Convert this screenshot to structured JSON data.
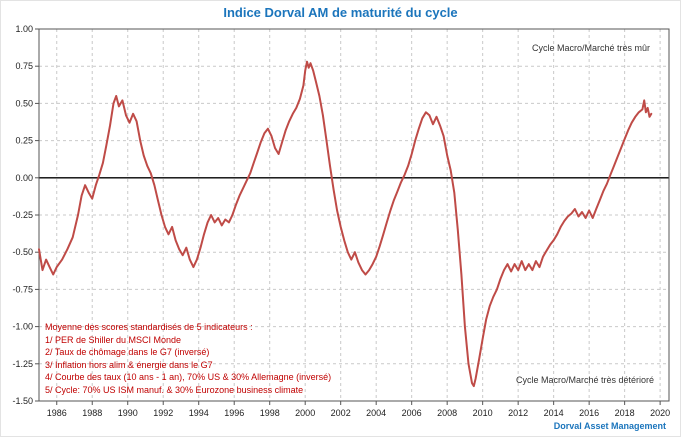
{
  "title": "Indice Dorval AM de maturité du cycle",
  "footer": "Dorval Asset Management",
  "annotations": {
    "top_right": "Cycle Macro/Marché très mûr",
    "bottom_right": "Cycle Macro/Marché très détérioré"
  },
  "methodology": {
    "lines": [
      "Moyenne des scores standardisés de 5 indicateurs :",
      "1/ PER de Shiller du MSCI Monde",
      "2/ Taux de chômage dans le G7 (inversé)",
      "3/ Inflation hors alim & énergie dans le G7",
      "4/ Courbe des taux (10 ans - 1 an), 70% US & 30% Allemagne (inversé)",
      "5/ Cycle: 70% US ISM manuf. & 30% Eurozone business climate"
    ]
  },
  "colors": {
    "title": "#1b75bc",
    "line": "#bf4b47",
    "methodology": "#c00000",
    "footer": "#1b75bc",
    "grid": "#c9c9c9",
    "axis": "#555555",
    "zero_line": "#000000"
  },
  "chart_data": {
    "type": "line",
    "title": "Indice Dorval AM de maturité du cycle",
    "xlabel": "",
    "ylabel": "",
    "xlim": [
      1985,
      2020.5
    ],
    "ylim": [
      -1.5,
      1.0
    ],
    "x_ticks": [
      1986,
      1988,
      1990,
      1992,
      1994,
      1996,
      1998,
      2000,
      2002,
      2004,
      2006,
      2008,
      2010,
      2012,
      2014,
      2016,
      2018,
      2020
    ],
    "y_ticks": [
      1.0,
      0.75,
      0.5,
      0.25,
      0.0,
      -0.25,
      -0.5,
      -0.75,
      -1.0,
      -1.25,
      -1.5
    ],
    "grid": "dashed",
    "legend_position": "none",
    "series": [
      {
        "name": "Indice Dorval AM de maturité du cycle",
        "x": [
          1985.0,
          1985.2,
          1985.4,
          1985.6,
          1985.8,
          1986.0,
          1986.3,
          1986.6,
          1986.9,
          1987.2,
          1987.4,
          1987.6,
          1987.8,
          1988.0,
          1988.2,
          1988.4,
          1988.6,
          1988.8,
          1989.0,
          1989.2,
          1989.35,
          1989.5,
          1989.7,
          1989.9,
          1990.1,
          1990.3,
          1990.5,
          1990.7,
          1990.9,
          1991.1,
          1991.3,
          1991.5,
          1991.7,
          1991.9,
          1992.1,
          1992.3,
          1992.5,
          1992.7,
          1992.9,
          1993.1,
          1993.3,
          1993.5,
          1993.7,
          1993.9,
          1994.1,
          1994.3,
          1994.5,
          1994.7,
          1994.9,
          1995.1,
          1995.3,
          1995.5,
          1995.7,
          1995.9,
          1996.1,
          1996.3,
          1996.5,
          1996.7,
          1996.9,
          1997.1,
          1997.3,
          1997.5,
          1997.7,
          1997.9,
          1998.1,
          1998.3,
          1998.5,
          1998.7,
          1998.9,
          1999.1,
          1999.3,
          1999.5,
          1999.7,
          1999.9,
          2000.0,
          2000.1,
          2000.2,
          2000.3,
          2000.45,
          2000.6,
          2000.8,
          2001.0,
          2001.2,
          2001.4,
          2001.6,
          2001.8,
          2002.0,
          2002.2,
          2002.4,
          2002.6,
          2002.8,
          2003.0,
          2003.2,
          2003.4,
          2003.6,
          2003.8,
          2004.0,
          2004.2,
          2004.4,
          2004.6,
          2004.8,
          2005.0,
          2005.2,
          2005.4,
          2005.6,
          2005.8,
          2006.0,
          2006.2,
          2006.4,
          2006.6,
          2006.8,
          2007.0,
          2007.2,
          2007.4,
          2007.6,
          2007.8,
          2008.0,
          2008.2,
          2008.4,
          2008.6,
          2008.8,
          2009.0,
          2009.2,
          2009.4,
          2009.5,
          2009.6,
          2009.8,
          2010.0,
          2010.2,
          2010.4,
          2010.6,
          2010.8,
          2011.0,
          2011.2,
          2011.4,
          2011.6,
          2011.8,
          2012.0,
          2012.2,
          2012.4,
          2012.6,
          2012.8,
          2013.0,
          2013.2,
          2013.4,
          2013.6,
          2013.8,
          2014.0,
          2014.2,
          2014.4,
          2014.6,
          2014.8,
          2015.0,
          2015.2,
          2015.4,
          2015.6,
          2015.8,
          2016.0,
          2016.2,
          2016.4,
          2016.6,
          2016.8,
          2017.0,
          2017.2,
          2017.4,
          2017.6,
          2017.8,
          2018.0,
          2018.2,
          2018.4,
          2018.6,
          2018.8,
          2019.0,
          2019.1,
          2019.2,
          2019.3,
          2019.4,
          2019.5
        ],
        "y": [
          -0.48,
          -0.62,
          -0.55,
          -0.6,
          -0.65,
          -0.6,
          -0.55,
          -0.48,
          -0.4,
          -0.25,
          -0.12,
          -0.05,
          -0.1,
          -0.14,
          -0.05,
          0.02,
          0.1,
          0.22,
          0.35,
          0.5,
          0.55,
          0.48,
          0.52,
          0.42,
          0.37,
          0.43,
          0.38,
          0.25,
          0.15,
          0.08,
          0.03,
          -0.05,
          -0.15,
          -0.25,
          -0.33,
          -0.38,
          -0.33,
          -0.42,
          -0.48,
          -0.52,
          -0.47,
          -0.55,
          -0.6,
          -0.55,
          -0.47,
          -0.38,
          -0.3,
          -0.25,
          -0.3,
          -0.27,
          -0.32,
          -0.28,
          -0.3,
          -0.25,
          -0.18,
          -0.12,
          -0.07,
          -0.02,
          0.03,
          0.1,
          0.17,
          0.24,
          0.3,
          0.33,
          0.28,
          0.2,
          0.16,
          0.24,
          0.32,
          0.38,
          0.43,
          0.47,
          0.53,
          0.62,
          0.72,
          0.78,
          0.74,
          0.77,
          0.72,
          0.65,
          0.55,
          0.42,
          0.25,
          0.08,
          -0.08,
          -0.22,
          -0.33,
          -0.42,
          -0.5,
          -0.55,
          -0.5,
          -0.57,
          -0.62,
          -0.65,
          -0.62,
          -0.58,
          -0.53,
          -0.46,
          -0.38,
          -0.3,
          -0.22,
          -0.15,
          -0.09,
          -0.03,
          0.02,
          0.08,
          0.16,
          0.25,
          0.33,
          0.4,
          0.44,
          0.42,
          0.36,
          0.41,
          0.35,
          0.28,
          0.15,
          0.05,
          -0.1,
          -0.35,
          -0.65,
          -1.0,
          -1.25,
          -1.38,
          -1.4,
          -1.35,
          -1.22,
          -1.08,
          -0.95,
          -0.86,
          -0.8,
          -0.75,
          -0.68,
          -0.62,
          -0.58,
          -0.63,
          -0.58,
          -0.62,
          -0.56,
          -0.62,
          -0.58,
          -0.62,
          -0.56,
          -0.6,
          -0.53,
          -0.49,
          -0.45,
          -0.42,
          -0.38,
          -0.33,
          -0.29,
          -0.26,
          -0.24,
          -0.21,
          -0.26,
          -0.23,
          -0.27,
          -0.22,
          -0.27,
          -0.21,
          -0.15,
          -0.09,
          -0.04,
          0.02,
          0.08,
          0.14,
          0.2,
          0.26,
          0.32,
          0.37,
          0.41,
          0.44,
          0.46,
          0.52,
          0.44,
          0.47,
          0.41,
          0.43
        ]
      }
    ]
  }
}
